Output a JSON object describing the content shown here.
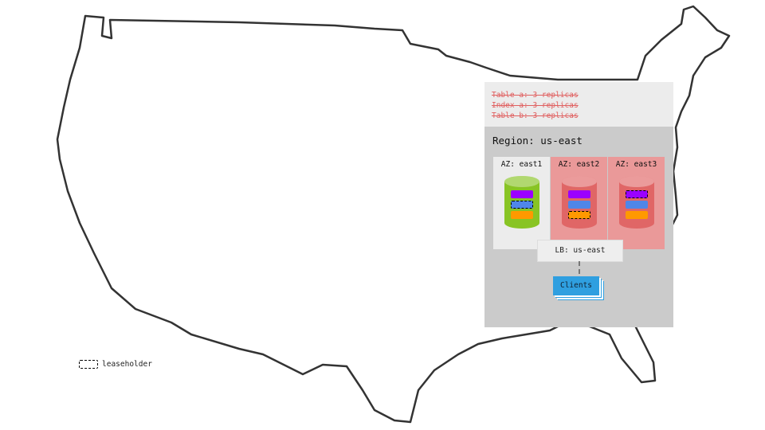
{
  "constraints": [
    "Table a: 3 replicas",
    "Index a: 3 replicas",
    "Table b: 3 replicas"
  ],
  "region": {
    "title": "Region: us-east"
  },
  "azs": [
    {
      "label": "AZ: east1",
      "status": "up",
      "leaseholder_chip": 1
    },
    {
      "label": "AZ: east2",
      "status": "down",
      "leaseholder_chip": 2
    },
    {
      "label": "AZ: east3",
      "status": "down",
      "leaseholder_chip": 0
    }
  ],
  "chip_colors": [
    "#9b00ff",
    "#4f86e8",
    "#ff9900"
  ],
  "colors": {
    "az_up_bg": "#ececec",
    "az_down_bg": "#ea9999",
    "cyl_up": "#88c424",
    "cyl_down": "#e06666",
    "constraint_text": "#e06060",
    "clients": "#2f9fe0"
  },
  "lb": {
    "label": "LB: us-east"
  },
  "clients": {
    "label": "Clients"
  },
  "legend": {
    "label": "leaseholder"
  }
}
